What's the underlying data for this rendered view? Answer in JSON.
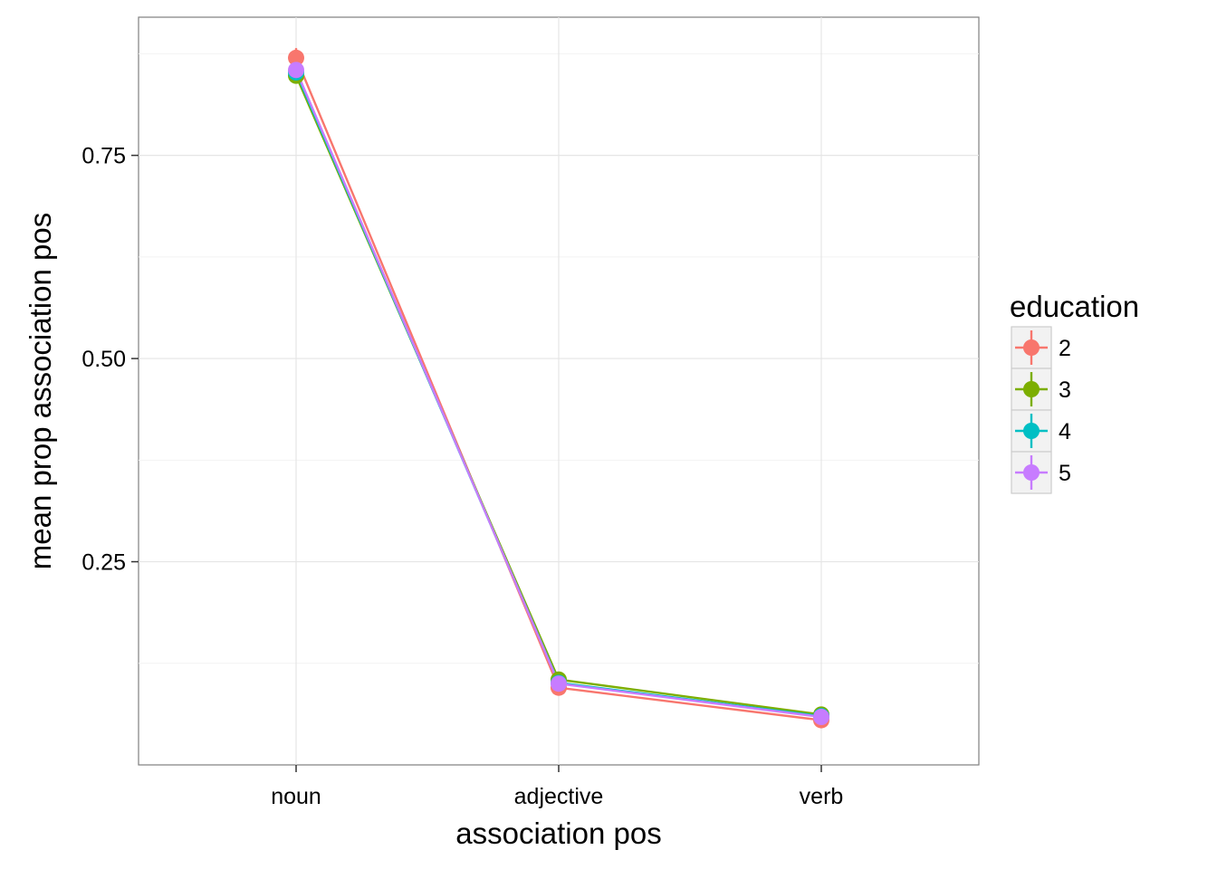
{
  "chart_data": {
    "type": "line",
    "title": "",
    "xlabel": "association pos",
    "ylabel": "mean prop association pos",
    "categories": [
      "noun",
      "adjective",
      "verb"
    ],
    "ylim": [
      0.0,
      0.92
    ],
    "yticks": [
      0.25,
      0.5,
      0.75
    ],
    "ytick_labels": [
      "0.25",
      "0.50",
      "0.75"
    ],
    "grid": true,
    "legend": {
      "title": "education",
      "position": "right"
    },
    "series": [
      {
        "name": "2",
        "color": "#F8766D",
        "values": [
          0.87,
          0.095,
          0.055
        ],
        "errors": [
          0.012,
          0.006,
          0.004
        ]
      },
      {
        "name": "3",
        "color": "#7CAE00",
        "values": [
          0.848,
          0.105,
          0.062
        ],
        "errors": [
          0.006,
          0.004,
          0.003
        ]
      },
      {
        "name": "4",
        "color": "#00BFC4",
        "values": [
          0.852,
          0.101,
          0.06
        ],
        "errors": [
          0.005,
          0.003,
          0.003
        ]
      },
      {
        "name": "5",
        "color": "#C77CFF",
        "values": [
          0.855,
          0.1,
          0.059
        ],
        "errors": [
          0.008,
          0.004,
          0.003
        ]
      }
    ]
  }
}
